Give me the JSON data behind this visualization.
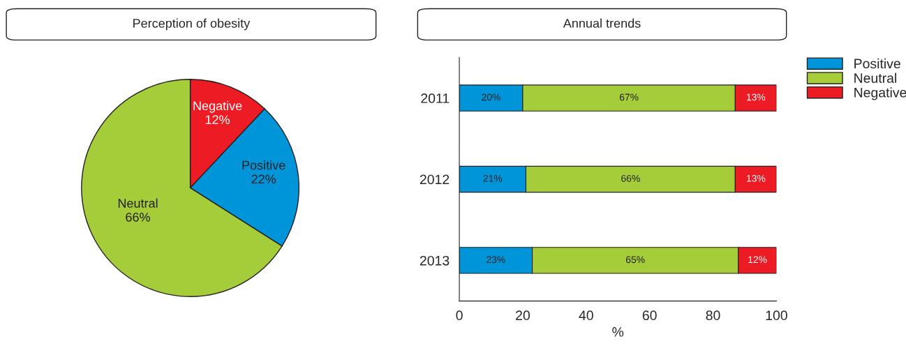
{
  "chart_data": [
    {
      "type": "pie",
      "title": "Perception of obesity",
      "categories": [
        "Negative",
        "Positive",
        "Neutral"
      ],
      "values": [
        12,
        22,
        66
      ],
      "value_labels": [
        "12%",
        "22%",
        "66%"
      ],
      "colors": [
        "#ed1c24",
        "#0095d9",
        "#a5cd39"
      ],
      "legend": false
    },
    {
      "type": "bar",
      "title": "Annual trends",
      "orientation": "horizontal",
      "stacked": true,
      "categories": [
        "2011",
        "2012",
        "2013"
      ],
      "xlabel": "%",
      "xlim": [
        0,
        100
      ],
      "xticks": [
        0,
        20,
        40,
        60,
        80,
        100
      ],
      "legend": "top right",
      "grid": false,
      "series": [
        {
          "name": "Positive",
          "color": "#0095d9",
          "values": [
            20,
            21,
            23
          ],
          "value_labels": [
            "20%",
            "21%",
            "23%"
          ]
        },
        {
          "name": "Neutral",
          "color": "#a5cd39",
          "values": [
            67,
            66,
            65
          ],
          "value_labels": [
            "67%",
            "66%",
            "65%"
          ]
        },
        {
          "name": "Negative",
          "color": "#ed1c24",
          "values": [
            13,
            13,
            12
          ],
          "value_labels": [
            "13%",
            "13%",
            "12%"
          ]
        }
      ]
    }
  ]
}
